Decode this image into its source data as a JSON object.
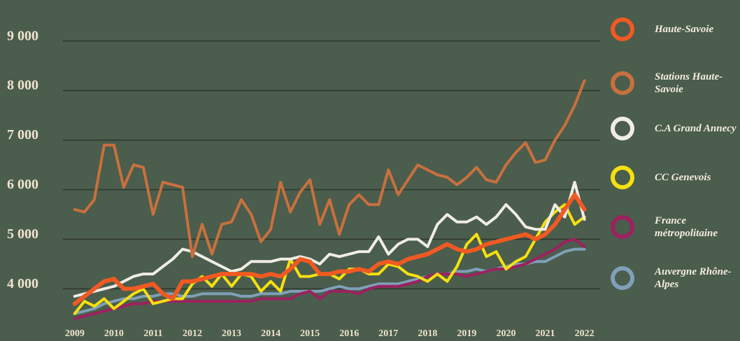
{
  "chart_data": {
    "type": "line",
    "x": [
      2009,
      2009.25,
      2009.5,
      2009.75,
      2010,
      2010.25,
      2010.5,
      2010.75,
      2011,
      2011.25,
      2011.5,
      2011.75,
      2012,
      2012.25,
      2012.5,
      2012.75,
      2013,
      2013.25,
      2013.5,
      2013.75,
      2014,
      2014.25,
      2014.5,
      2014.75,
      2015,
      2015.25,
      2015.5,
      2015.75,
      2016,
      2016.25,
      2016.5,
      2016.75,
      2017,
      2017.25,
      2017.5,
      2017.75,
      2018,
      2018.25,
      2018.5,
      2018.75,
      2019,
      2019.25,
      2019.5,
      2019.75,
      2020,
      2020.25,
      2020.5,
      2020.75,
      2021,
      2021.25,
      2021.5,
      2021.75,
      2022
    ],
    "xlim": [
      2008.7,
      2022.4
    ],
    "xticks": [
      2009,
      2010,
      2011,
      2012,
      2013,
      2014,
      2015,
      2016,
      2017,
      2018,
      2019,
      2020,
      2021,
      2022
    ],
    "ylim": [
      3300,
      9700
    ],
    "yticks": [
      {
        "value": 4000,
        "label": "4 000"
      },
      {
        "value": 5000,
        "label": "5 000"
      },
      {
        "value": 6000,
        "label": "6 000"
      },
      {
        "value": 7000,
        "label": "7 000"
      },
      {
        "value": 8000,
        "label": "8 000"
      },
      {
        "value": 9000,
        "label": "9 000"
      }
    ],
    "grid": true,
    "legend": "right",
    "series": [
      {
        "name": "Haute-Savoie",
        "color": "#f05a22",
        "values": [
          3700,
          3850,
          4000,
          4150,
          4200,
          4000,
          4000,
          4050,
          4100,
          3900,
          3800,
          4150,
          4150,
          4200,
          4250,
          4300,
          4300,
          4300,
          4300,
          4250,
          4300,
          4250,
          4400,
          4600,
          4550,
          4300,
          4300,
          4350,
          4350,
          4400,
          4350,
          4500,
          4550,
          4500,
          4600,
          4650,
          4700,
          4800,
          4900,
          4800,
          4750,
          4800,
          4900,
          4950,
          5000,
          5050,
          5100,
          5000,
          5100,
          5300,
          5600,
          5900,
          5600
        ]
      },
      {
        "name": "Stations Haute-Savoie",
        "color": "#c8703e",
        "values": [
          5600,
          5550,
          5800,
          6900,
          6900,
          6050,
          6500,
          6450,
          5500,
          6150,
          6100,
          6050,
          4650,
          5300,
          4700,
          5300,
          5350,
          5800,
          5500,
          4950,
          5200,
          6150,
          5550,
          5950,
          6200,
          5300,
          5800,
          5100,
          5700,
          5900,
          5700,
          5700,
          6400,
          5900,
          6200,
          6500,
          6400,
          6300,
          6250,
          6100,
          6250,
          6450,
          6200,
          6150,
          6500,
          6750,
          6950,
          6550,
          6600,
          7000,
          7300,
          7700,
          8200
        ]
      },
      {
        "name": "C.A Grand Annecy",
        "color": "#f0ede6",
        "values": [
          3850,
          3900,
          3950,
          4000,
          4050,
          4150,
          4250,
          4300,
          4300,
          4450,
          4600,
          4800,
          4750,
          4650,
          4550,
          4450,
          4350,
          4400,
          4550,
          4550,
          4550,
          4600,
          4600,
          4650,
          4600,
          4500,
          4700,
          4650,
          4700,
          4750,
          4750,
          5050,
          4700,
          4900,
          5000,
          5000,
          4850,
          5300,
          5500,
          5350,
          5350,
          5450,
          5300,
          5450,
          5700,
          5500,
          5250,
          5200,
          5200,
          5700,
          5450,
          6150,
          5400
        ]
      },
      {
        "name": "CC Genevois",
        "color": "#f5e010",
        "values": [
          3500,
          3750,
          3650,
          3800,
          3600,
          3750,
          3900,
          4000,
          3700,
          3750,
          3800,
          3800,
          4100,
          4250,
          4050,
          4300,
          4050,
          4300,
          4250,
          3950,
          4150,
          3950,
          4600,
          4250,
          4250,
          4300,
          4300,
          4200,
          4400,
          4400,
          4300,
          4300,
          4500,
          4450,
          4300,
          4250,
          4150,
          4300,
          4150,
          4450,
          4900,
          5100,
          4650,
          4750,
          4400,
          4550,
          4650,
          5000,
          5350,
          5550,
          5700,
          5300,
          5450
        ]
      },
      {
        "name": "France métropolitaine",
        "color": "#9c2160",
        "values": [
          3400,
          3450,
          3500,
          3550,
          3600,
          3650,
          3700,
          3700,
          3750,
          3750,
          3750,
          3750,
          3750,
          3750,
          3750,
          3750,
          3750,
          3750,
          3750,
          3800,
          3800,
          3800,
          3800,
          3900,
          3950,
          3800,
          3950,
          3950,
          3950,
          3900,
          4000,
          4050,
          4050,
          4050,
          4100,
          4150,
          4250,
          4300,
          4300,
          4300,
          4250,
          4300,
          4350,
          4400,
          4400,
          4450,
          4500,
          4600,
          4700,
          4800,
          4950,
          5000,
          4850
        ]
      },
      {
        "name": "Auvergne Rhône-Alpes",
        "color": "#7fa0b8",
        "values": [
          3500,
          3550,
          3600,
          3700,
          3750,
          3800,
          3800,
          3850,
          3850,
          3900,
          3900,
          3850,
          3850,
          3900,
          3900,
          3900,
          3900,
          3850,
          3850,
          3900,
          3900,
          3900,
          3950,
          3950,
          3950,
          3950,
          4000,
          4050,
          4000,
          4000,
          4050,
          4100,
          4100,
          4100,
          4150,
          4200,
          4250,
          4300,
          4300,
          4350,
          4350,
          4400,
          4350,
          4400,
          4450,
          4500,
          4500,
          4550,
          4550,
          4650,
          4750,
          4800,
          4800
        ]
      }
    ]
  }
}
